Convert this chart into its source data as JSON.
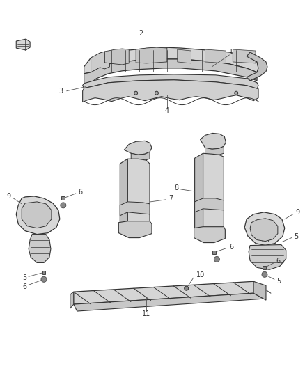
{
  "background_color": "#ffffff",
  "fig_width": 4.38,
  "fig_height": 5.33,
  "dpi": 100,
  "line_color": "#555555",
  "dark_line": "#333333",
  "label_fontsize": 7,
  "label_color": "#333333"
}
